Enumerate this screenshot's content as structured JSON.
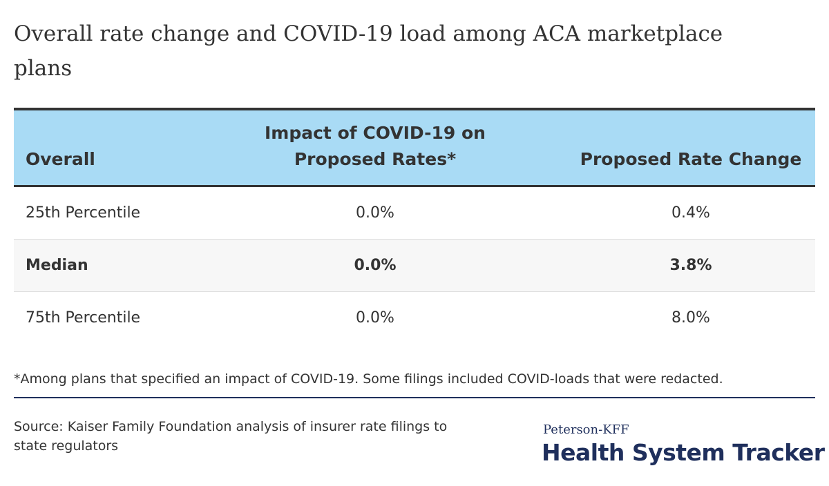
{
  "header": {
    "title": "Overall rate change and COVID-19 load among ACA marketplace plans"
  },
  "table": {
    "columns": [
      "Overall",
      "Impact of COVID-19 on Proposed Rates*",
      "Proposed Rate Change"
    ],
    "rows": [
      [
        "25th Percentile",
        "0.0%",
        "0.4%"
      ],
      [
        "Median",
        "0.0%",
        "3.8%"
      ],
      [
        "75th Percentile",
        "0.0%",
        "8.0%"
      ]
    ]
  },
  "footnote": "*Among plans that specified an impact of COVID-19. Some filings included COVID-loads that were redacted.",
  "source": "Source: Kaiser Family Foundation analysis of insurer rate filings to state regulators",
  "logo": {
    "top": "Peterson-KFF",
    "bottom": "Health System Tracker"
  }
}
